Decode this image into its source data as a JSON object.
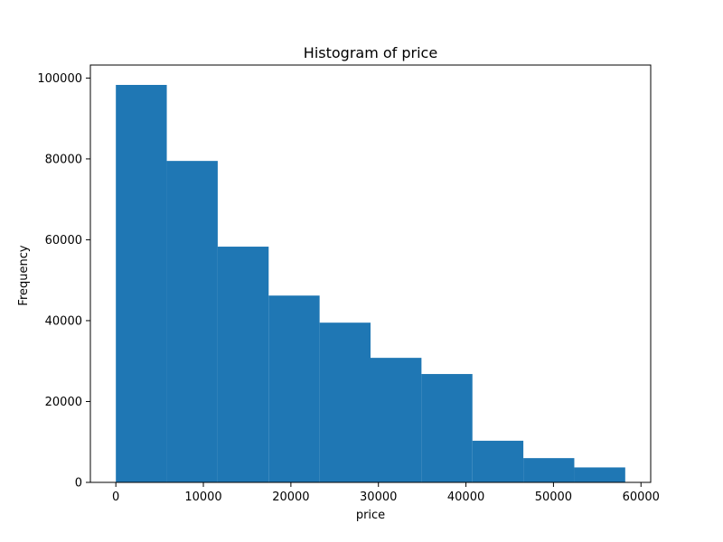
{
  "chart_data": {
    "type": "bar",
    "title": "Histogram of price",
    "xlabel": "price",
    "ylabel": "Frequency",
    "bin_edges": [
      0,
      5820,
      11640,
      17460,
      23280,
      29100,
      34920,
      40740,
      46560,
      52380,
      58200
    ],
    "values": [
      98300,
      79500,
      58300,
      46200,
      39500,
      30800,
      26800,
      10300,
      6000,
      3700
    ],
    "xlim": [
      -2910,
      61110
    ],
    "ylim": [
      0,
      103215
    ],
    "xticks": [
      0,
      10000,
      20000,
      30000,
      40000,
      50000,
      60000
    ],
    "xtick_labels": [
      "0",
      "10000",
      "20000",
      "30000",
      "40000",
      "50000",
      "60000"
    ],
    "yticks": [
      0,
      20000,
      40000,
      60000,
      80000,
      100000
    ],
    "ytick_labels": [
      "0",
      "20000",
      "40000",
      "60000",
      "80000",
      "100000"
    ],
    "color": "#1f77b4",
    "grid": false,
    "legend": "none"
  }
}
